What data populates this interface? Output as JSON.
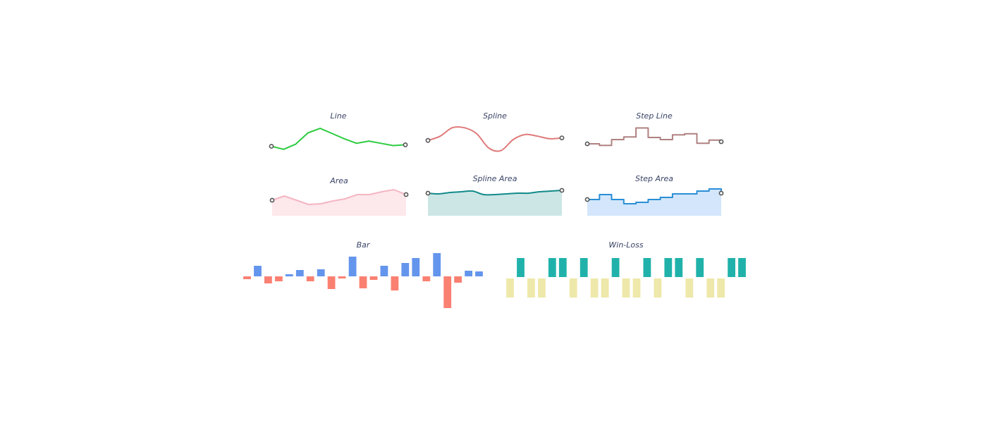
{
  "chart_data": [
    {
      "id": "line",
      "type": "line",
      "title": "Line",
      "color": "#2ecc40",
      "fill": null,
      "marker_ends": true,
      "values": [
        4,
        2,
        5.5,
        13,
        16,
        12.5,
        9,
        6,
        7.5,
        6,
        4.5,
        5
      ],
      "ylim": [
        0,
        17
      ]
    },
    {
      "id": "spline",
      "type": "line",
      "curve": "spline",
      "title": "Spline",
      "color": "#e07a7a",
      "fill": null,
      "marker_ends": true,
      "values": [
        7,
        9.5,
        14.5,
        14.5,
        11,
        2.5,
        1,
        7.5,
        10.5,
        9.5,
        8,
        8.5
      ],
      "ylim": [
        0,
        15
      ]
    },
    {
      "id": "step-line",
      "type": "line",
      "curve": "step",
      "title": "Step Line",
      "color": "#b08080",
      "fill": null,
      "marker_ends": true,
      "values": [
        8,
        6.5,
        12,
        14.5,
        23,
        14,
        12,
        16.5,
        17.5,
        8.5,
        11.5,
        10
      ],
      "ylim": [
        0,
        24
      ]
    },
    {
      "id": "area",
      "type": "area",
      "title": "Area",
      "color": "#f4b6c2",
      "fill": "#fde8ec",
      "marker_ends": true,
      "values": [
        11,
        14,
        11,
        8,
        8.5,
        10.5,
        12,
        15,
        15,
        17,
        18.5,
        15
      ],
      "ylim": [
        0,
        20
      ]
    },
    {
      "id": "spline-area",
      "type": "area",
      "curve": "spline",
      "title": "Spline Area",
      "color": "#138a8a",
      "fill": "#cce6e6",
      "marker_ends": true,
      "values": [
        16,
        15.5,
        16.5,
        17,
        17.5,
        15,
        15,
        15.5,
        16,
        16,
        17,
        17.5,
        18
      ],
      "ylim": [
        0,
        20
      ]
    },
    {
      "id": "step-area",
      "type": "area",
      "curve": "step",
      "title": "Step Area",
      "color": "#2a8fd6",
      "fill": "#d3e6fb",
      "marker_ends": true,
      "values": [
        11.5,
        15,
        11.5,
        8.5,
        9.5,
        11.5,
        13,
        15.5,
        15.5,
        17.5,
        19,
        16
      ],
      "ylim": [
        0,
        20
      ]
    },
    {
      "id": "bar",
      "type": "bar",
      "title": "Bar",
      "positive_color": "#6495ed",
      "negative_color": "#fa8072",
      "values": [
        -2,
        7.5,
        -5,
        -3.5,
        1.5,
        4.5,
        -3.5,
        5,
        -9,
        -1.5,
        14,
        -8.5,
        -2.5,
        7.5,
        -10,
        9.5,
        13,
        -3.5,
        16.5,
        -22.5,
        -4.5,
        4,
        3.5
      ],
      "ylim": [
        -23,
        17
      ]
    },
    {
      "id": "win-loss",
      "type": "bar",
      "title": "Win-Loss",
      "positive_color": "#20b2aa",
      "negative_color": "#eee8aa",
      "values": [
        -1,
        1,
        -1,
        -1,
        1,
        1,
        -1,
        1,
        -1,
        -1,
        1,
        -1,
        -1,
        1,
        -1,
        1,
        1,
        -1,
        1,
        -1,
        -1,
        1,
        1
      ],
      "ylim": [
        -1,
        1
      ]
    }
  ],
  "marker": {
    "stroke": "#555555",
    "fill": "#ffffff"
  }
}
